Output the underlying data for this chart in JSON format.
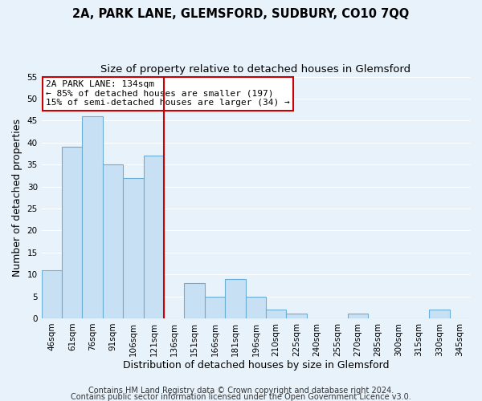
{
  "title": "2A, PARK LANE, GLEMSFORD, SUDBURY, CO10 7QQ",
  "subtitle": "Size of property relative to detached houses in Glemsford",
  "xlabel": "Distribution of detached houses by size in Glemsford",
  "ylabel": "Number of detached properties",
  "bar_labels": [
    "46sqm",
    "61sqm",
    "76sqm",
    "91sqm",
    "106sqm",
    "121sqm",
    "136sqm",
    "151sqm",
    "166sqm",
    "181sqm",
    "196sqm",
    "210sqm",
    "225sqm",
    "240sqm",
    "255sqm",
    "270sqm",
    "285sqm",
    "300sqm",
    "315sqm",
    "330sqm",
    "345sqm"
  ],
  "bar_values": [
    11,
    39,
    46,
    35,
    32,
    37,
    0,
    8,
    5,
    9,
    5,
    2,
    1,
    0,
    0,
    1,
    0,
    0,
    0,
    2,
    0
  ],
  "bar_color": "#c8e0f4",
  "bar_edge_color": "#6aaed6",
  "vline_color": "#cc0000",
  "ylim": [
    0,
    55
  ],
  "yticks": [
    0,
    5,
    10,
    15,
    20,
    25,
    30,
    35,
    40,
    45,
    50,
    55
  ],
  "annotation_title": "2A PARK LANE: 134sqm",
  "annotation_line1": "← 85% of detached houses are smaller (197)",
  "annotation_line2": "15% of semi-detached houses are larger (34) →",
  "annotation_box_color": "#ffffff",
  "annotation_box_edge": "#cc0000",
  "footer1": "Contains HM Land Registry data © Crown copyright and database right 2024.",
  "footer2": "Contains public sector information licensed under the Open Government Licence v3.0.",
  "bg_color": "#e8f2fb",
  "plot_bg_color": "#e8f2fb",
  "title_fontsize": 10.5,
  "subtitle_fontsize": 9.5,
  "axis_label_fontsize": 9,
  "tick_fontsize": 7.5,
  "annotation_fontsize": 8,
  "footer_fontsize": 7
}
